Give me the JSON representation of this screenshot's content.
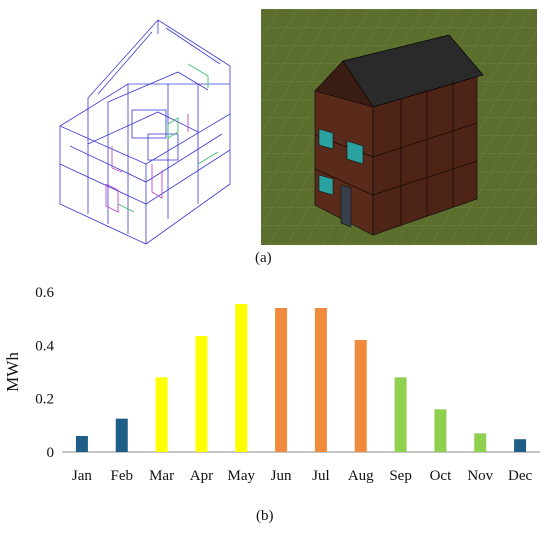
{
  "figure": {
    "label_a": "(a)",
    "label_b": "(b)"
  },
  "colors": {
    "winter": "#1f5e86",
    "spring": "#ffff00",
    "summer": "#f08a3c",
    "autumn": "#8fd14f",
    "ground": "#5c6e2d",
    "wall": "#5a2a1a",
    "roof": "#2a2a2a",
    "window": "#2aa3a0"
  },
  "chart_data": {
    "type": "bar",
    "ylabel": "MWh",
    "xlabel": "",
    "ylim": [
      0,
      0.6
    ],
    "yticks": [
      "0",
      "0.2",
      "0.4",
      "0.6"
    ],
    "categories": [
      "Jan",
      "Feb",
      "Mar",
      "Apr",
      "May",
      "Jun",
      "Jul",
      "Aug",
      "Sep",
      "Oct",
      "Nov",
      "Dec"
    ],
    "values": [
      0.06,
      0.125,
      0.28,
      0.435,
      0.555,
      0.54,
      0.54,
      0.42,
      0.28,
      0.16,
      0.07,
      0.048
    ],
    "bar_colors": [
      "#1f5e86",
      "#1f5e86",
      "#ffff00",
      "#ffff00",
      "#ffff00",
      "#f08a3c",
      "#f08a3c",
      "#f08a3c",
      "#8fd14f",
      "#8fd14f",
      "#8fd14f",
      "#1f5e86"
    ],
    "grid": false,
    "legend": "none"
  }
}
